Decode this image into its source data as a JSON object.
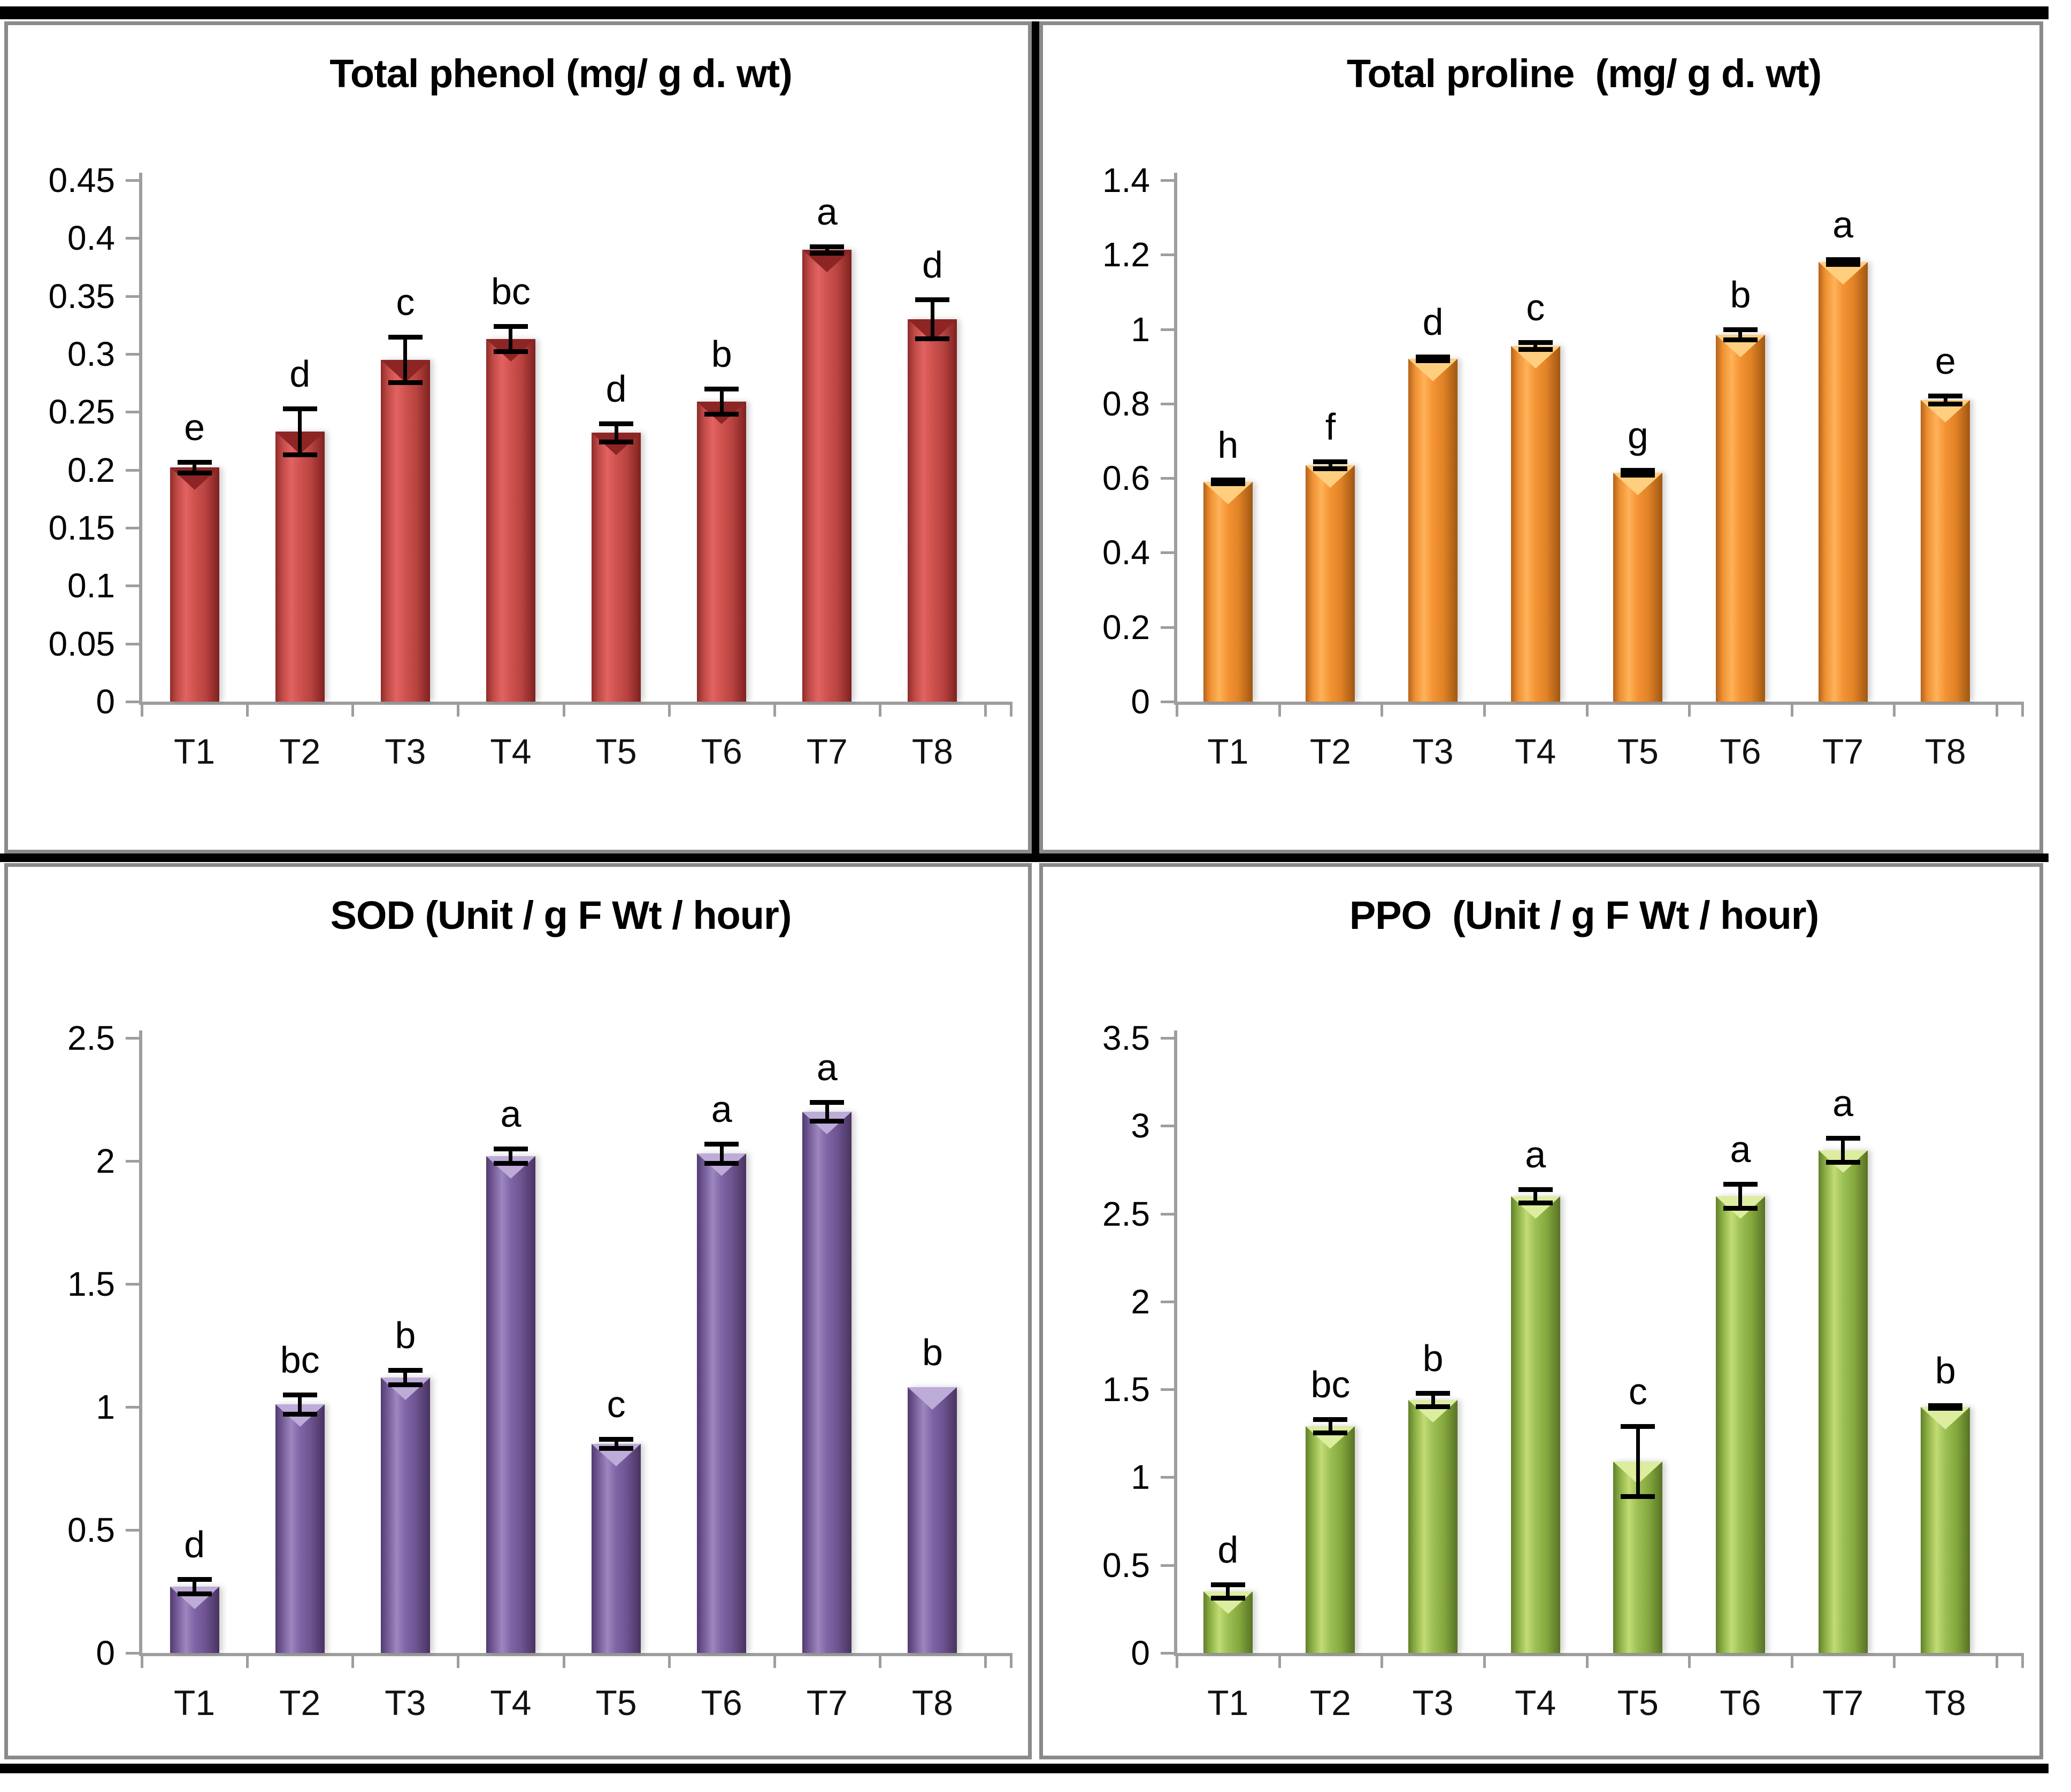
{
  "figure": {
    "layout": "2x2 grid of bar charts",
    "frame_color": "#000000",
    "panel_border_color": "#8a8a8a",
    "axis_color": "#9e9e9e"
  },
  "chart_data": [
    {
      "id": "total-phenol",
      "type": "bar",
      "title": "Total phenol (mg/ g d. wt)",
      "categories": [
        "T1",
        "T2",
        "T3",
        "T4",
        "T5",
        "T6",
        "T7",
        "T8"
      ],
      "values": [
        0.202,
        0.233,
        0.295,
        0.313,
        0.232,
        0.259,
        0.39,
        0.33
      ],
      "errors": [
        0.005,
        0.02,
        0.02,
        0.011,
        0.008,
        0.011,
        0.003,
        0.017
      ],
      "sig_letters": [
        "e",
        "d",
        "c",
        "bc",
        "d",
        "b",
        "a",
        "d"
      ],
      "bar_color": "#C0504D",
      "ylim": [
        0,
        0.45
      ],
      "ytick_values": [
        0.45,
        0.4,
        0.35,
        0.3,
        0.25,
        0.2,
        0.15,
        0.1,
        0.05,
        0
      ],
      "ytick_labels": [
        "0.45",
        "0.4",
        "0.35",
        "0.3",
        "0.25",
        "0.2",
        "0.15",
        "0.1",
        "0.05",
        "0"
      ],
      "grid": false,
      "legend": "none"
    },
    {
      "id": "total-proline",
      "type": "bar",
      "title": "Total proline  (mg/ g d. wt)",
      "categories": [
        "T1",
        "T2",
        "T3",
        "T4",
        "T5",
        "T6",
        "T7",
        "T8"
      ],
      "values": [
        0.59,
        0.635,
        0.92,
        0.955,
        0.615,
        0.985,
        1.18,
        0.81
      ],
      "errors": [
        0.006,
        0.01,
        0.006,
        0.01,
        0.007,
        0.015,
        0.007,
        0.012
      ],
      "sig_letters": [
        "h",
        "f",
        "d",
        "c",
        "g",
        "b",
        "a",
        "e"
      ],
      "bar_color": "#F79646",
      "ylim": [
        0,
        1.4
      ],
      "ytick_values": [
        1.4,
        1.2,
        1,
        0.8,
        0.6,
        0.4,
        0.2,
        0
      ],
      "ytick_labels": [
        "1.4",
        "1.2",
        "1",
        "0.8",
        "0.6",
        "0.4",
        "0.2",
        "0"
      ],
      "grid": false,
      "legend": "none"
    },
    {
      "id": "sod",
      "type": "bar",
      "title": "SOD (Unit / g F Wt / hour)",
      "categories": [
        "T1",
        "T2",
        "T3",
        "T4",
        "T5",
        "T6",
        "T7",
        "T8"
      ],
      "values": [
        0.27,
        1.01,
        1.12,
        2.02,
        0.85,
        2.03,
        2.2,
        1.08
      ],
      "errors": [
        0.03,
        0.04,
        0.03,
        0.03,
        0.02,
        0.04,
        0.04,
        0
      ],
      "sig_letters": [
        "d",
        "bc",
        "b",
        "a",
        "c",
        "a",
        "a",
        "b"
      ],
      "bar_color": "#8064A2",
      "ylim": [
        0,
        2.5
      ],
      "ytick_values": [
        2.5,
        2,
        1.5,
        1,
        0.5,
        0
      ],
      "ytick_labels": [
        "2.5",
        "2",
        "1.5",
        "1",
        "0.5",
        "0"
      ],
      "grid": false,
      "legend": "none"
    },
    {
      "id": "ppo",
      "type": "bar",
      "title": "PPO  (Unit / g F Wt / hour)",
      "categories": [
        "T1",
        "T2",
        "T3",
        "T4",
        "T5",
        "T6",
        "T7",
        "T8"
      ],
      "values": [
        0.35,
        1.29,
        1.44,
        2.6,
        1.09,
        2.6,
        2.86,
        1.4
      ],
      "errors": [
        0.04,
        0.04,
        0.04,
        0.04,
        0.2,
        0.07,
        0.07,
        0.01
      ],
      "sig_letters": [
        "d",
        "bc",
        "b",
        "a",
        "c",
        "a",
        "a",
        "b"
      ],
      "bar_color": "#9BBB59",
      "ylim": [
        0,
        3.5
      ],
      "ytick_values": [
        3.5,
        3,
        2.5,
        2,
        1.5,
        1,
        0.5,
        0
      ],
      "ytick_labels": [
        "3.5",
        "3",
        "2.5",
        "2",
        "1.5",
        "1",
        "0.5",
        "0"
      ],
      "grid": false,
      "legend": "none"
    }
  ]
}
